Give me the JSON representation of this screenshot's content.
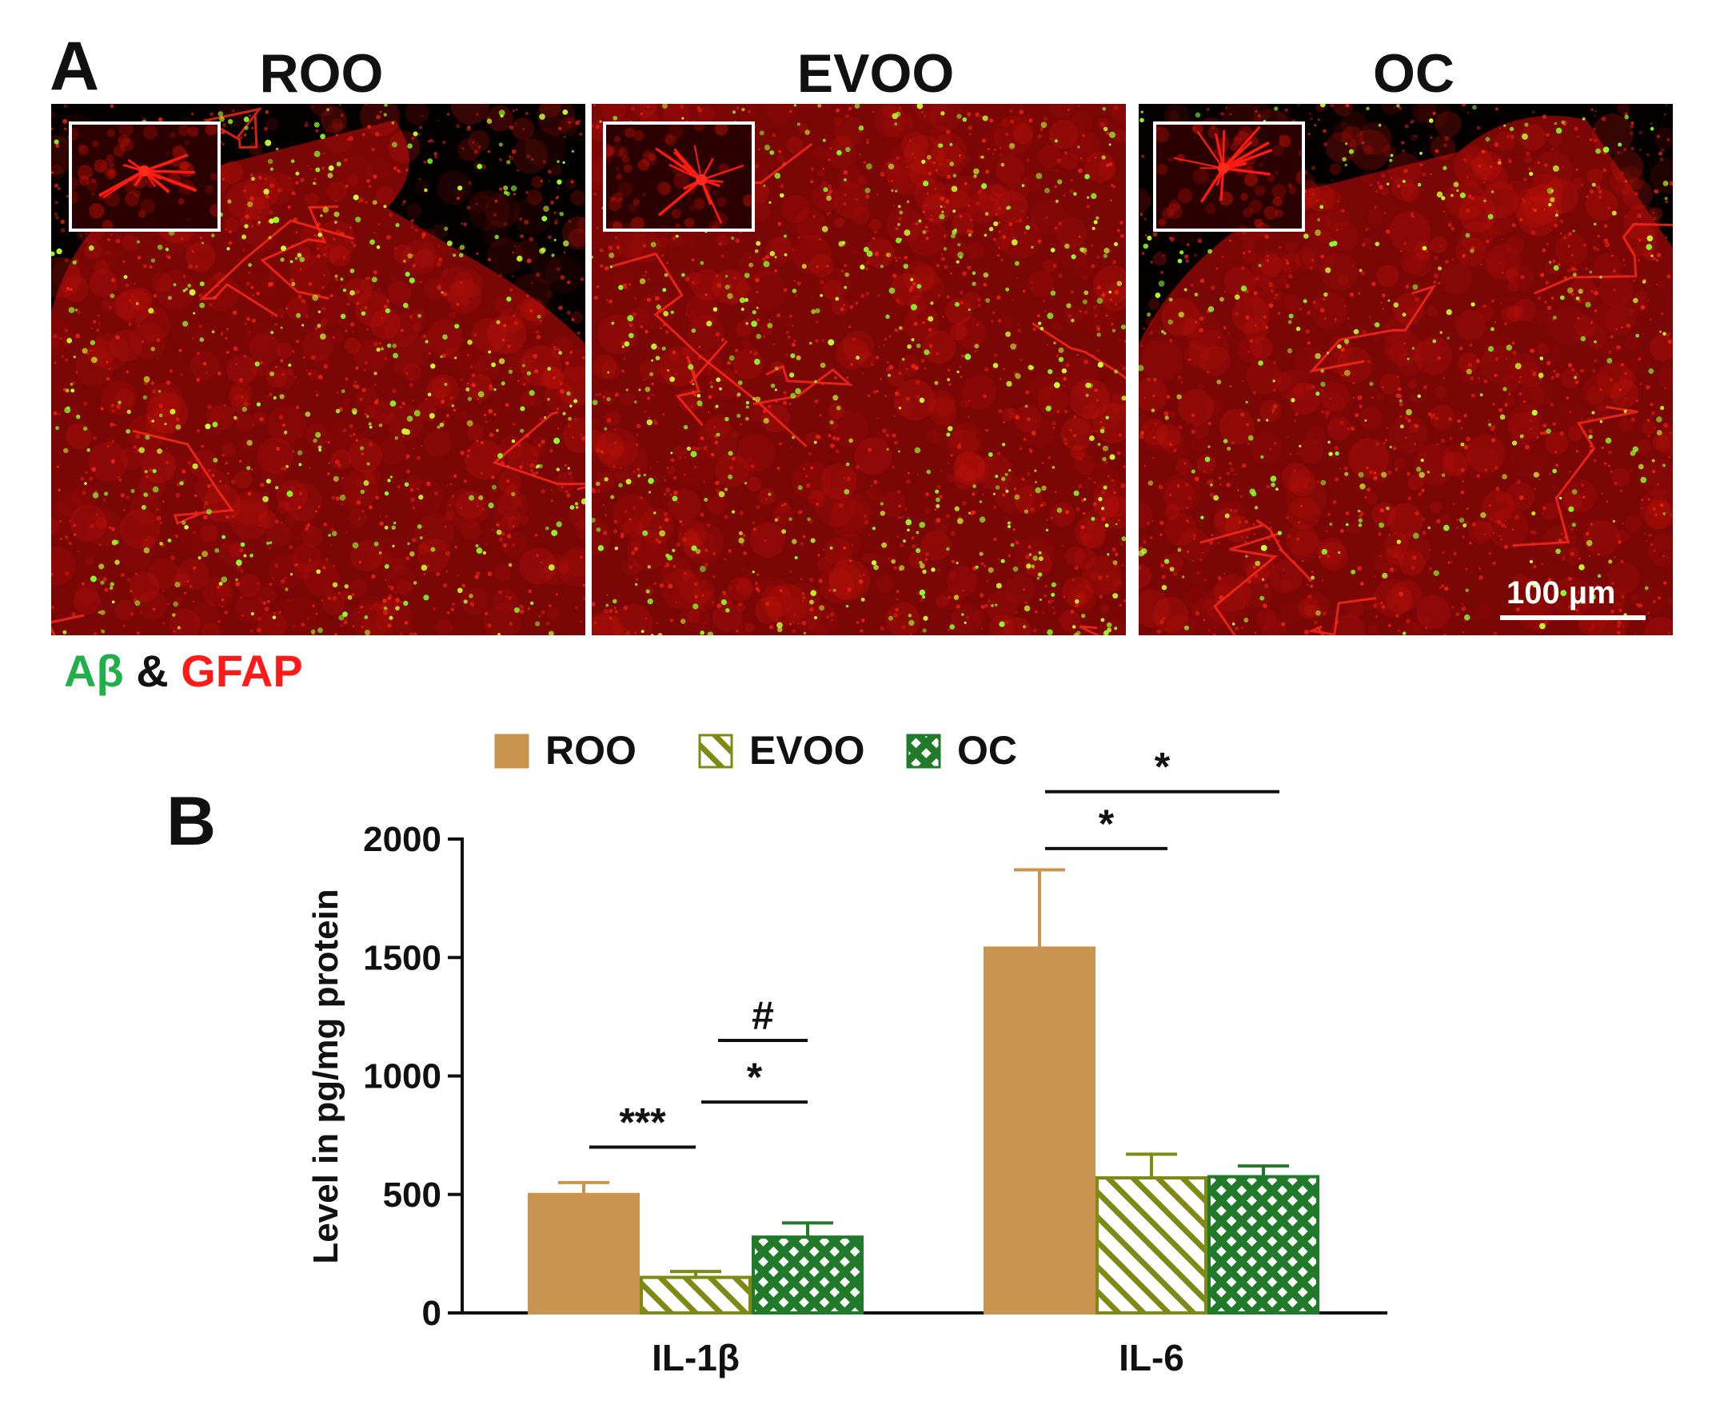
{
  "panel_a": {
    "letter": "A",
    "images": [
      {
        "title": "ROO",
        "inset_desc": "astrocyte-inset"
      },
      {
        "title": "EVOO",
        "inset_desc": "astrocyte-inset"
      },
      {
        "title": "OC",
        "inset_desc": "astrocyte-inset"
      }
    ],
    "scale_bar": "100 µm",
    "stain": {
      "ab": "Aβ",
      "amp": "&",
      "gfap": "GFAP"
    },
    "colors": {
      "ab": "#1fb04a",
      "gfap": "#ff1a1a"
    }
  },
  "panel_b": {
    "letter": "B"
  },
  "chart_data": {
    "type": "bar",
    "categories": [
      "IL-1β",
      "IL-6"
    ],
    "series": [
      {
        "name": "ROO",
        "values": [
          500,
          1540
        ],
        "errors": [
          50,
          330
        ],
        "color": "#c8944f",
        "pattern": "solid"
      },
      {
        "name": "EVOO",
        "values": [
          150,
          570
        ],
        "errors": [
          25,
          100
        ],
        "color": "#7f8a14",
        "pattern": "diagonal"
      },
      {
        "name": "OC",
        "values": [
          320,
          575
        ],
        "errors": [
          60,
          45
        ],
        "color": "#217a2a",
        "pattern": "crosshatch"
      }
    ],
    "ylabel": "Level in pg/mg protein",
    "xlabel": "",
    "ylim": [
      0,
      2000
    ],
    "yticks": [
      0,
      500,
      1000,
      1500,
      2000
    ],
    "legend_position": "top",
    "annotations": [
      {
        "category": "IL-1β",
        "from": "ROO",
        "to": "EVOO",
        "label": "***",
        "level": 700
      },
      {
        "category": "IL-1β",
        "from": "EVOO",
        "to": "OC",
        "label": "*",
        "level": 890
      },
      {
        "category": "IL-1β",
        "from": "EVOO_mid",
        "to": "OC",
        "label": "#",
        "level": 1150
      },
      {
        "category": "IL-6",
        "from": "ROO",
        "to": "EVOO",
        "label": "*",
        "level": 1960
      },
      {
        "category": "IL-6",
        "from": "ROO",
        "to": "OC",
        "label": "*",
        "level": 2200
      }
    ]
  }
}
